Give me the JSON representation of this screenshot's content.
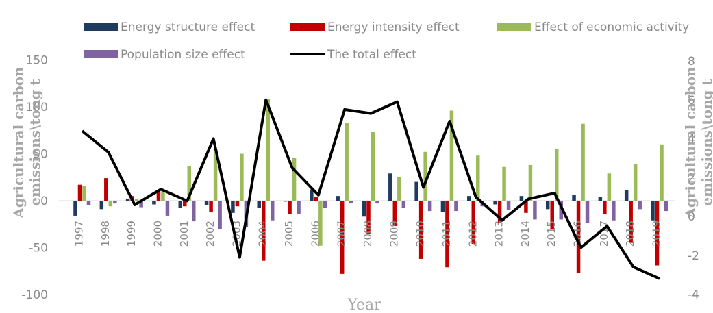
{
  "chart_data": {
    "type": "bar",
    "xlabel": "Year",
    "ylabel_left": "Agricultural carbon emissions\\tong t",
    "ylabel_right": "Agricultural carbon emissions\\tong t",
    "ylim_left": [
      -100,
      150
    ],
    "yticks_left": [
      -100,
      -50,
      0,
      50,
      100,
      150
    ],
    "ylim_right": [
      -4,
      8
    ],
    "yticks_right": [
      -4,
      -2,
      0,
      2,
      4,
      6,
      8
    ],
    "legend_position": "top",
    "categories": [
      "1997",
      "1998",
      "1999",
      "2000",
      "2001",
      "2002",
      "2003",
      "2004",
      "2005",
      "2006",
      "2007",
      "2008",
      "2009",
      "2010",
      "2011",
      "2012",
      "2013",
      "2014",
      "2015",
      "2016",
      "2017",
      "2018",
      "2019"
    ],
    "series": [
      {
        "name": "Energy structure effect",
        "axis": "left",
        "color": "#1f3b5e",
        "values": [
          -16,
          -9,
          2,
          -4,
          -8,
          -5,
          -13,
          -8,
          -1,
          12,
          5,
          -17,
          29,
          20,
          -12,
          5,
          -4,
          5,
          -9,
          6,
          4,
          11,
          -21
        ]
      },
      {
        "name": "Energy intensity effect",
        "axis": "left",
        "color": "#c00000",
        "values": [
          17,
          24,
          5,
          10,
          -6,
          -12,
          -6,
          -64,
          -14,
          4,
          -78,
          -35,
          -27,
          -62,
          -71,
          -46,
          -24,
          -13,
          -30,
          -77,
          -14,
          -45,
          -69
        ]
      },
      {
        "name": "Effect of economic activity",
        "axis": "left",
        "color": "#9bbb59",
        "values": [
          16,
          -6,
          2,
          10,
          37,
          55,
          50,
          108,
          46,
          -48,
          83,
          73,
          25,
          52,
          96,
          48,
          36,
          38,
          55,
          82,
          29,
          39,
          60
        ]
      },
      {
        "name": "Population size effect",
        "axis": "left",
        "color": "#8064a2",
        "values": [
          -5,
          -3,
          -7,
          -16,
          -22,
          -30,
          -28,
          -21,
          -14,
          -8,
          -3,
          -3,
          -8,
          -11,
          -11,
          -6,
          -10,
          -20,
          -20,
          -24,
          -21,
          -9,
          -11
        ]
      },
      {
        "name": "The total effect",
        "type": "line",
        "axis": "right",
        "color": "#000000",
        "values": [
          4.4,
          3.3,
          0.6,
          1.4,
          0.8,
          4.0,
          -2.1,
          6.0,
          2.5,
          1.1,
          5.5,
          5.3,
          5.9,
          1.5,
          4.9,
          1.0,
          -0.2,
          0.9,
          1.2,
          -1.6,
          -0.5,
          -2.6,
          -3.2
        ]
      }
    ]
  },
  "colors": {
    "text": "#8a8a8a",
    "axis_title": "#a6a6a6",
    "zero_line": "#d9d9d9"
  }
}
